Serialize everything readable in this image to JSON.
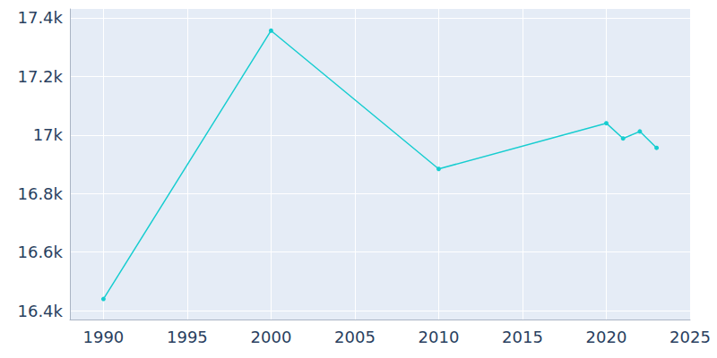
{
  "chart_data": {
    "type": "line",
    "x": [
      1990,
      2000,
      2010,
      2020,
      2021,
      2022,
      2023
    ],
    "values": [
      16440,
      17356,
      16884,
      17040,
      16988,
      17012,
      16956
    ],
    "color": "#17cdd0",
    "marker": "circle",
    "xlim": [
      1988,
      2025
    ],
    "xticks": [
      1990,
      1995,
      2000,
      2005,
      2010,
      2015,
      2020,
      2025
    ],
    "ylim": [
      16370,
      17430
    ],
    "yticks": [
      {
        "value": 16400,
        "label": "16.4k"
      },
      {
        "value": 16600,
        "label": "16.6k"
      },
      {
        "value": 16800,
        "label": "16.8k"
      },
      {
        "value": 17000,
        "label": "17k"
      },
      {
        "value": 17200,
        "label": "17.2k"
      },
      {
        "value": 17400,
        "label": "17.4k"
      }
    ],
    "grid": true
  }
}
